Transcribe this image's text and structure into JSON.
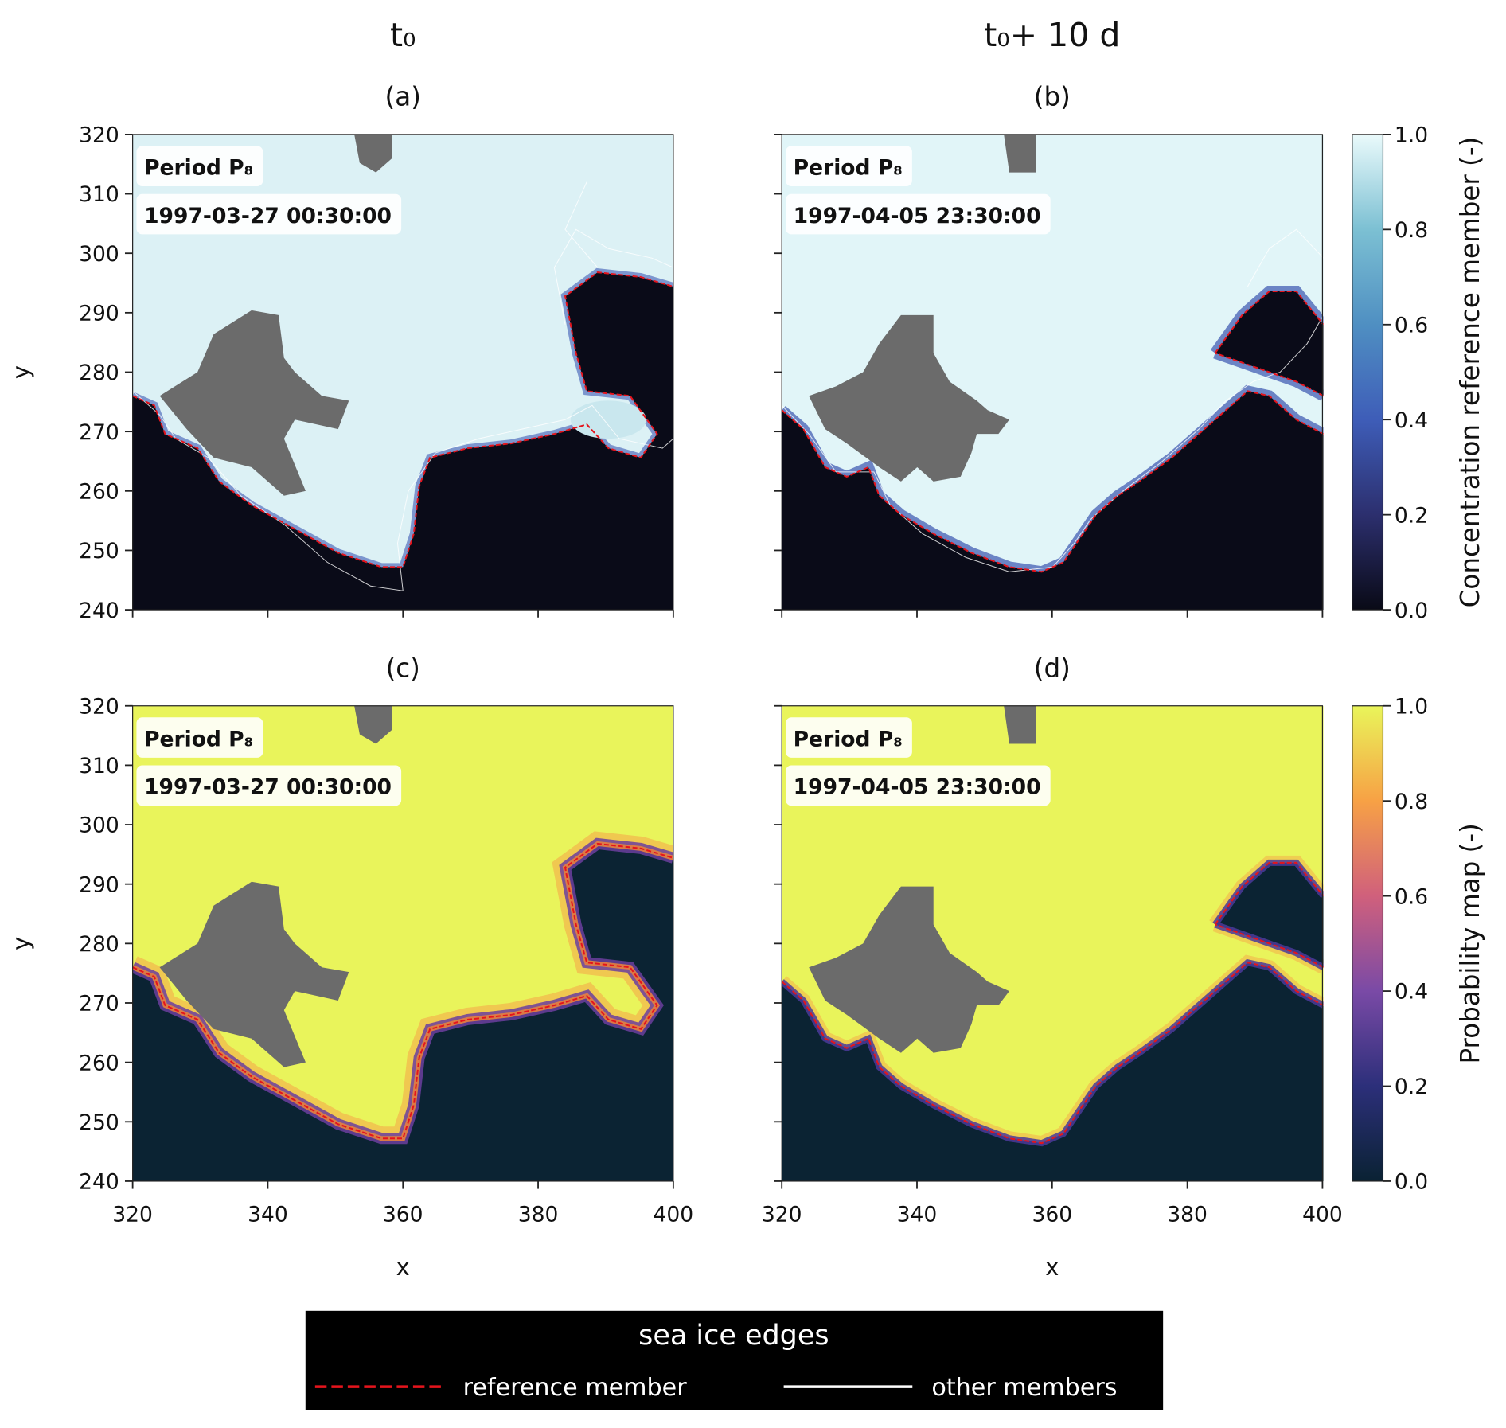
{
  "column_titles": [
    "t₀",
    "t₀+ 10 d"
  ],
  "chart_data": [
    {
      "type": "heatmap",
      "title": "(a)",
      "annotations": [
        "Period P₈",
        "1997-03-27 00:30:00"
      ],
      "ylabel": "y",
      "xlim": [
        320,
        400
      ],
      "ylim": [
        240,
        320
      ],
      "xticks": [
        320,
        340,
        360,
        380,
        400
      ],
      "yticks": [
        240,
        250,
        260,
        270,
        280,
        290,
        300,
        310,
        320
      ],
      "show_xticklabels": false,
      "show_yticklabels": true
    },
    {
      "type": "heatmap",
      "title": "(b)",
      "annotations": [
        "Period P₈",
        "1997-04-05 23:30:00"
      ],
      "xlim": [
        320,
        400
      ],
      "ylim": [
        240,
        320
      ],
      "xticks": [
        320,
        340,
        360,
        380,
        400
      ],
      "yticks": [
        240,
        250,
        260,
        270,
        280,
        290,
        300,
        310,
        320
      ],
      "show_xticklabels": false,
      "show_yticklabels": false
    },
    {
      "type": "heatmap",
      "title": "(c)",
      "annotations": [
        "Period P₈",
        "1997-03-27 00:30:00"
      ],
      "xlabel": "x",
      "ylabel": "y",
      "xlim": [
        320,
        400
      ],
      "ylim": [
        240,
        320
      ],
      "xticks": [
        320,
        340,
        360,
        380,
        400
      ],
      "yticks": [
        240,
        250,
        260,
        270,
        280,
        290,
        300,
        310,
        320
      ],
      "show_xticklabels": true,
      "show_yticklabels": true
    },
    {
      "type": "heatmap",
      "title": "(d)",
      "annotations": [
        "Period P₈",
        "1997-04-05 23:30:00"
      ],
      "xlabel": "x",
      "xlim": [
        320,
        400
      ],
      "ylim": [
        240,
        320
      ],
      "xticks": [
        320,
        340,
        360,
        380,
        400
      ],
      "yticks": [
        240,
        250,
        260,
        270,
        280,
        290,
        300,
        310,
        320
      ],
      "show_xticklabels": true,
      "show_yticklabels": false
    }
  ],
  "colorbars": [
    {
      "label": "Concentration reference member (-)",
      "lim": [
        0,
        1
      ],
      "ticks": [
        {
          "value": 0,
          "label": "0.0"
        },
        {
          "value": 0.2,
          "label": "0.2"
        },
        {
          "value": 0.4,
          "label": "0.4"
        },
        {
          "value": 0.6,
          "label": "0.6"
        },
        {
          "value": 0.8,
          "label": "0.8"
        },
        {
          "value": 1,
          "label": "1.0"
        }
      ],
      "colormap": [
        "#090a16",
        "#2c2f6e",
        "#3e5db8",
        "#4f8fc2",
        "#7cc0d3",
        "#eafafb"
      ]
    },
    {
      "label": "Probability map (-)",
      "lim": [
        0,
        1
      ],
      "ticks": [
        {
          "value": 0,
          "label": "0.0"
        },
        {
          "value": 0.2,
          "label": "0.2"
        },
        {
          "value": 0.4,
          "label": "0.4"
        },
        {
          "value": 0.6,
          "label": "0.6"
        },
        {
          "value": 0.8,
          "label": "0.8"
        },
        {
          "value": 1,
          "label": "1.0"
        }
      ],
      "colormap": [
        "#0a2233",
        "#2c2f7a",
        "#7a4aa6",
        "#d0607c",
        "#f7a145",
        "#e9f55a"
      ]
    }
  ],
  "legend": {
    "title": "sea ice edges",
    "entries": [
      {
        "name": "reference member",
        "color": "#e5141c",
        "style": "dashed"
      },
      {
        "name": "other members",
        "color": "#ffffff",
        "style": "solid"
      }
    ]
  }
}
